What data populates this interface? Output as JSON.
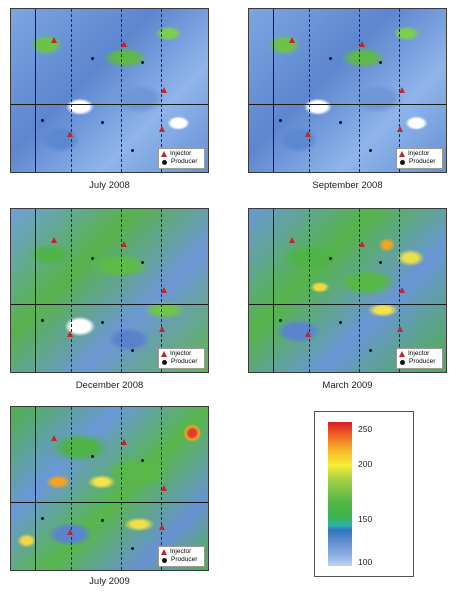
{
  "panels": [
    {
      "caption": "July 2008",
      "legend": {
        "injector": "Injector",
        "producer": "Producer"
      }
    },
    {
      "caption": "September 2008",
      "legend": {
        "injector": "Injector",
        "producer": "Producer"
      }
    },
    {
      "caption": "December 2008",
      "legend": {
        "injector": "Injector",
        "producer": "Producer"
      }
    },
    {
      "caption": "March 2009",
      "legend": {
        "injector": "Injector",
        "producer": "Producer"
      }
    },
    {
      "caption": "July 2009",
      "legend": {
        "injector": "Injector",
        "producer": "Producer"
      }
    }
  ],
  "colorbar": {
    "ticks": [
      "250",
      "200",
      "150",
      "100"
    ],
    "colors": {
      "high": "#d81c23",
      "mid_high": "#f7ee34",
      "mid": "#3db54a",
      "mid_low": "#2f74bd",
      "low": "#bcd5f1"
    }
  },
  "symbols": {
    "injector_color": "#c0272d",
    "producer_color": "#111111"
  }
}
